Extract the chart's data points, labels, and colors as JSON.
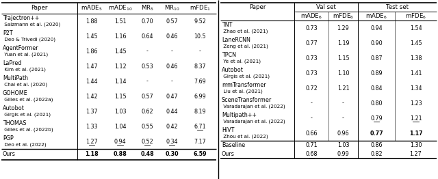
{
  "left_table": {
    "col_labels": [
      "Paper",
      "mADE$_5$",
      "mADE$_{10}$",
      "MR$_5$",
      "MR$_{10}$",
      "mFDE$_1$"
    ],
    "rows": [
      {
        "paper_main": "Trajectron++",
        "paper_sub": " Salzmann et al. (2020)",
        "vals": [
          "1.88",
          "1.51",
          "0.70",
          "0.57",
          "9.52"
        ]
      },
      {
        "paper_main": "P2T",
        "paper_sub": " Deo & Trivedi (2020)",
        "vals": [
          "1.45",
          "1.16",
          "0.64",
          "0.46",
          "10.5"
        ]
      },
      {
        "paper_main": "AgentFormer",
        "paper_sub": " Yuan et al. (2021)",
        "vals": [
          "1.86",
          "1.45",
          "-",
          "-",
          "-"
        ]
      },
      {
        "paper_main": "LaPred",
        "paper_sub": " Kim et al. (2021)",
        "vals": [
          "1.47",
          "1.12",
          "0.53",
          "0.46",
          "8.37"
        ]
      },
      {
        "paper_main": "MultiPath",
        "paper_sub": " Chai et al. (2020)",
        "vals": [
          "1.44",
          "1.14",
          "-",
          "-",
          "7.69"
        ]
      },
      {
        "paper_main": "GOHOME",
        "paper_sub": " Gilles et al. (2022a)",
        "vals": [
          "1.42",
          "1.15",
          "0.57",
          "0.47",
          "6.99"
        ]
      },
      {
        "paper_main": "Autobot",
        "paper_sub": " Girgis et al. (2021)",
        "vals": [
          "1.37",
          "1.03",
          "0.62",
          "0.44",
          "8.19"
        ]
      },
      {
        "paper_main": "THOMAS",
        "paper_sub": " Gilles et al. (2022b)",
        "vals": [
          "1.33",
          "1.04",
          "0.55",
          "0.42",
          "6.71"
        ]
      },
      {
        "paper_main": "PGP",
        "paper_sub": " Deo et al. (2022)",
        "vals": [
          "1.27",
          "0.94",
          "0.52",
          "0.34",
          "7.17"
        ]
      }
    ],
    "ours": [
      "1.18",
      "0.88",
      "0.48",
      "0.30",
      "6.59"
    ],
    "underline_pgp": [
      0,
      1,
      2,
      3
    ],
    "underline_thomas": [
      4
    ],
    "bold_ours": [
      0,
      1,
      2,
      3,
      4
    ]
  },
  "right_table": {
    "group_headers": [
      "Val set",
      "Test set"
    ],
    "col_labels": [
      "mADE$_6$",
      "mFDE$_6$",
      "mADE$_6$",
      "mFDE$_6$"
    ],
    "rows": [
      {
        "paper_main": "TNT",
        "paper_sub": " Zhao et al. (2021)",
        "vals": [
          "0.73",
          "1.29",
          "0.94",
          "1.54"
        ]
      },
      {
        "paper_main": "LaneRCNN",
        "paper_sub": " Zeng et al. (2021)",
        "vals": [
          "0.77",
          "1.19",
          "0.90",
          "1.45"
        ]
      },
      {
        "paper_main": "TPCN",
        "paper_sub": " Ye et al. (2021)",
        "vals": [
          "0.73",
          "1.15",
          "0.87",
          "1.38"
        ]
      },
      {
        "paper_main": "Autobot",
        "paper_sub": " Girgis et al. (2021)",
        "vals": [
          "0.73",
          "1.10",
          "0.89",
          "1.41"
        ]
      },
      {
        "paper_main": "mmTransformer",
        "paper_sub": " Liu et al. (2021)",
        "vals": [
          "0.72",
          "1.21",
          "0.84",
          "1.34"
        ]
      },
      {
        "paper_main": "SceneTransformer",
        "paper_sub": " Varadarajan et al. (2022)",
        "vals": [
          "-",
          "-",
          "0.80",
          "1.23"
        ]
      },
      {
        "paper_main": "Multipath++",
        "paper_sub": " Varadarajan et al. (2022)",
        "vals": [
          "-",
          "-",
          "0.79",
          "1.21"
        ]
      },
      {
        "paper_main": "HiVT",
        "paper_sub": " Zhou et al. (2022)",
        "vals": [
          "0.66",
          "0.96",
          "0.77",
          "1.17"
        ]
      }
    ],
    "baseline": [
      "0.71",
      "1.03",
      "0.86",
      "1.30"
    ],
    "ours": [
      "0.68",
      "0.99",
      "0.82",
      "1.27"
    ],
    "underline_multipath": [
      2,
      3
    ],
    "underline_ours": [
      0,
      1
    ],
    "bold_hivt": [
      2,
      3
    ]
  }
}
